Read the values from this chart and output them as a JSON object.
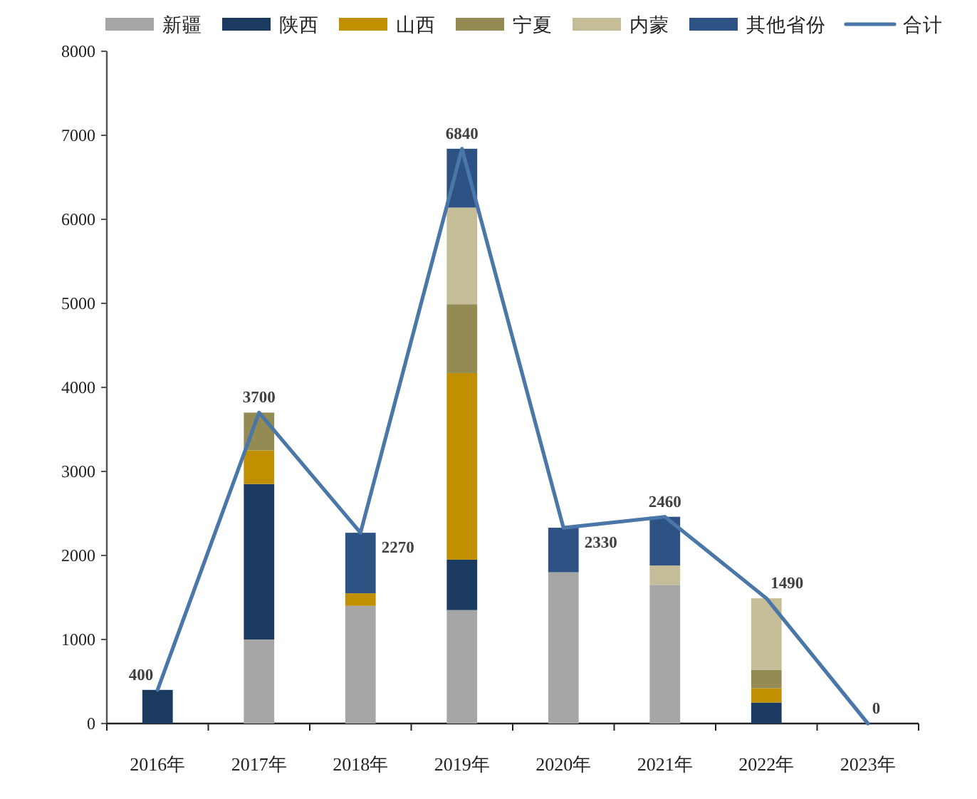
{
  "chart_data": {
    "type": "bar",
    "stacked": true,
    "legend": "top",
    "categories": [
      "2016年",
      "2017年",
      "2018年",
      "2019年",
      "2020年",
      "2021年",
      "2022年",
      "2023年"
    ],
    "ylim": [
      0,
      8000
    ],
    "yticks": [
      0,
      1000,
      2000,
      3000,
      4000,
      5000,
      6000,
      7000,
      8000
    ],
    "series": [
      {
        "name": "新疆",
        "color": "#a6a6a6",
        "values": [
          0,
          1000,
          1400,
          1350,
          1800,
          1650,
          0,
          0
        ]
      },
      {
        "name": "陕西",
        "color": "#1b3a5f",
        "values": [
          400,
          1850,
          0,
          600,
          0,
          0,
          250,
          0
        ]
      },
      {
        "name": "山西",
        "color": "#c09000",
        "values": [
          0,
          400,
          150,
          2220,
          0,
          0,
          170,
          0
        ]
      },
      {
        "name": "宁夏",
        "color": "#948b54",
        "values": [
          0,
          450,
          0,
          820,
          0,
          0,
          220,
          0
        ]
      },
      {
        "name": "内蒙",
        "color": "#c4bd97",
        "values": [
          0,
          0,
          0,
          1150,
          0,
          230,
          850,
          0
        ]
      },
      {
        "name": "其他省份",
        "color": "#2e5283",
        "values": [
          0,
          0,
          720,
          700,
          530,
          580,
          0,
          0
        ]
      },
      {
        "name": "合计",
        "type": "line",
        "color": "#4a76a8",
        "values": [
          400,
          3700,
          2270,
          6840,
          2330,
          2460,
          1490,
          0
        ],
        "value_labels": [
          "400",
          "3700",
          "2270",
          "6840",
          "2330",
          "2460",
          "1490",
          "0"
        ]
      }
    ]
  }
}
